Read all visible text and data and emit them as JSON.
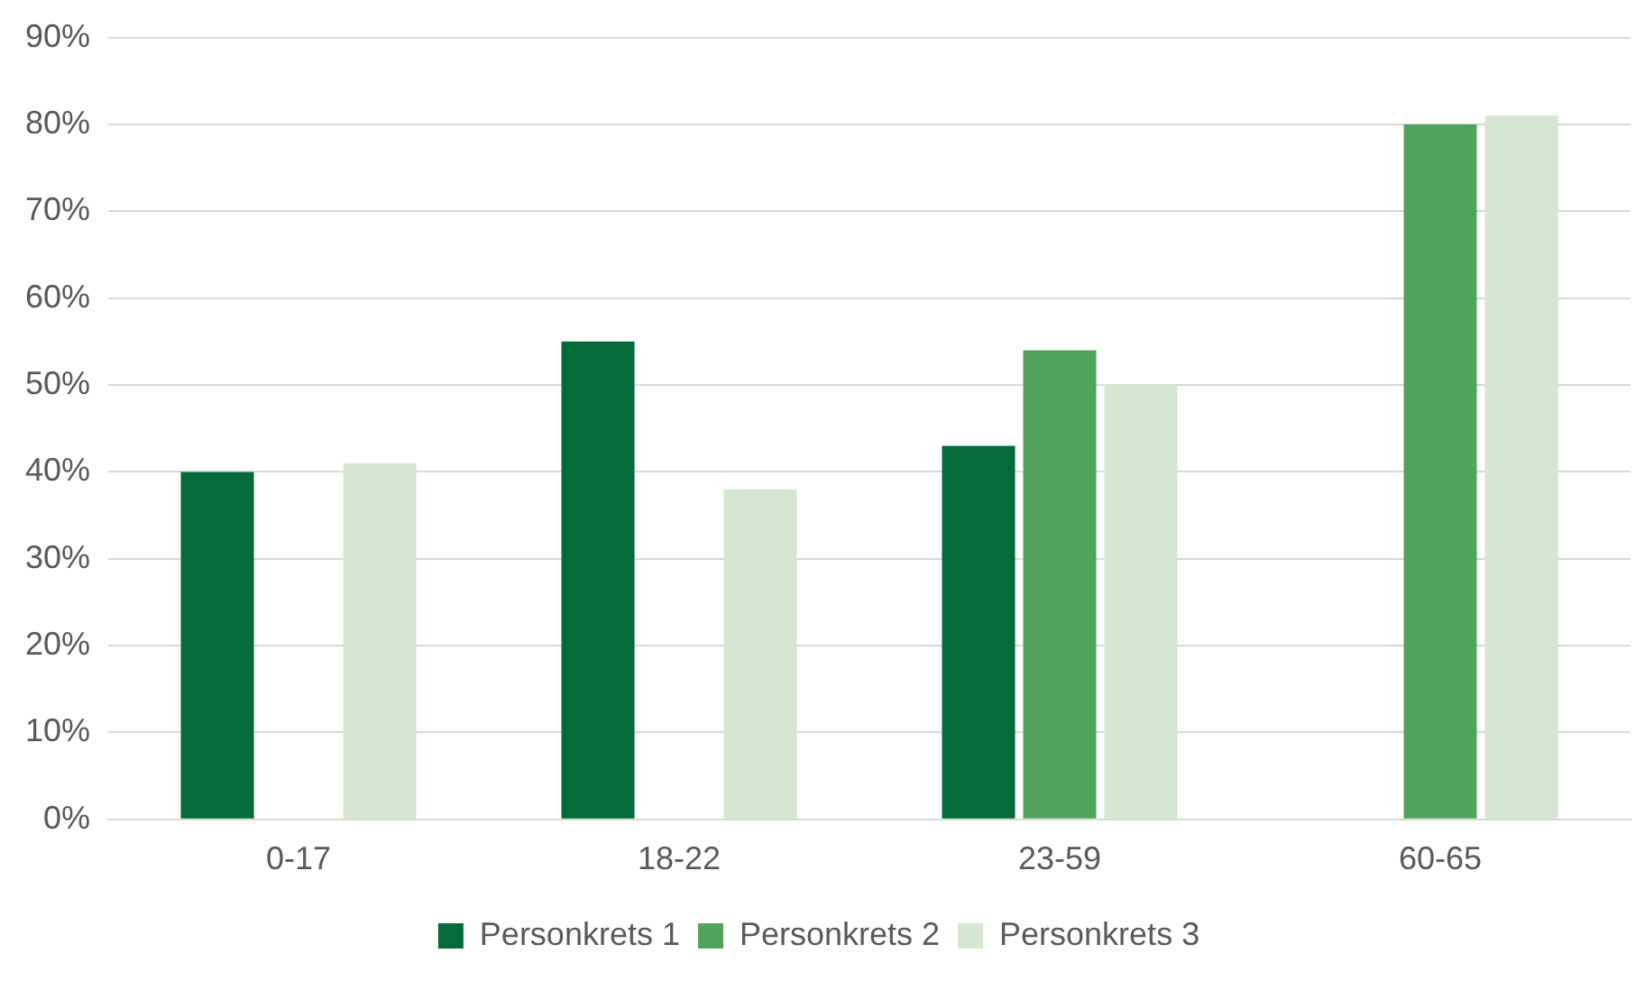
{
  "chart_data": {
    "type": "bar",
    "categories": [
      "0-17",
      "18-22",
      "23-59",
      "60-65"
    ],
    "series": [
      {
        "name": "Personkrets 1",
        "color": "#046a38",
        "values": [
          40,
          55,
          43,
          null
        ]
      },
      {
        "name": "Personkrets 2",
        "color": "#52a35a",
        "values": [
          null,
          null,
          54,
          80
        ]
      },
      {
        "name": "Personkrets 3",
        "color": "#d5e7d0",
        "values": [
          41,
          38,
          50,
          81
        ]
      }
    ],
    "ylim": [
      0,
      90
    ],
    "yticks": [
      {
        "value": 0,
        "label": "0%"
      },
      {
        "value": 10,
        "label": "10%"
      },
      {
        "value": 20,
        "label": "20%"
      },
      {
        "value": 30,
        "label": "30%"
      },
      {
        "value": 40,
        "label": "40%"
      },
      {
        "value": 50,
        "label": "50%"
      },
      {
        "value": 60,
        "label": "60%"
      },
      {
        "value": 70,
        "label": "70%"
      },
      {
        "value": 80,
        "label": "80%"
      },
      {
        "value": 90,
        "label": "90%"
      }
    ],
    "grid": "y",
    "legend": "bottom"
  }
}
